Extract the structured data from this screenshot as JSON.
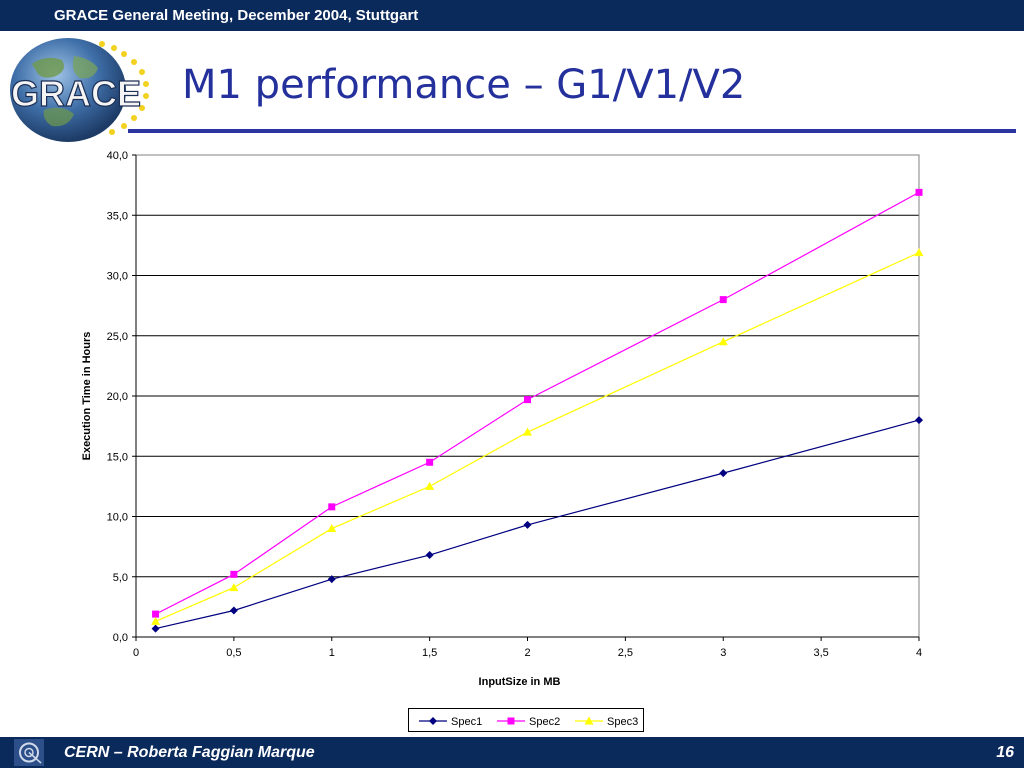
{
  "header": {
    "meeting": "GRACE General Meeting, December 2004, Stuttgart"
  },
  "logo": {
    "text": "GRACE",
    "icon": "globe-stars-logo-icon"
  },
  "slide": {
    "title": "M1 performance – G1/V1/V2"
  },
  "footer": {
    "author": "CERN – Roberta Faggian Marque",
    "page": "16",
    "icon": "cern-logo-icon"
  },
  "colors": {
    "bar": "#0b2a5c",
    "title": "#24309c",
    "spec1": "#000080",
    "spec2": "#ff00ff",
    "spec3": "#ffff00"
  },
  "chart_data": {
    "type": "line",
    "xlabel": "InputSize in MB",
    "ylabel": "Execution Time in Hours",
    "xlim": [
      0,
      4
    ],
    "ylim": [
      0,
      40
    ],
    "x_ticks": [
      "0",
      "0,5",
      "1",
      "1,5",
      "2",
      "2,5",
      "3",
      "3,5",
      "4"
    ],
    "y_ticks": [
      "0,0",
      "5,0",
      "10,0",
      "15,0",
      "20,0",
      "25,0",
      "30,0",
      "35,0",
      "40,0"
    ],
    "grid": "horizontal",
    "legend_position": "bottom",
    "x": [
      0.1,
      0.5,
      1,
      1.5,
      2,
      3,
      4
    ],
    "series": [
      {
        "name": "Spec1",
        "marker": "diamond",
        "values": [
          0.7,
          2.2,
          4.8,
          6.8,
          9.3,
          13.6,
          18.0
        ]
      },
      {
        "name": "Spec2",
        "marker": "square",
        "values": [
          1.9,
          5.2,
          10.8,
          14.5,
          19.7,
          28.0,
          36.9
        ]
      },
      {
        "name": "Spec3",
        "marker": "triangle",
        "values": [
          1.3,
          4.1,
          9.0,
          12.5,
          17.0,
          24.5,
          31.9
        ]
      }
    ]
  }
}
